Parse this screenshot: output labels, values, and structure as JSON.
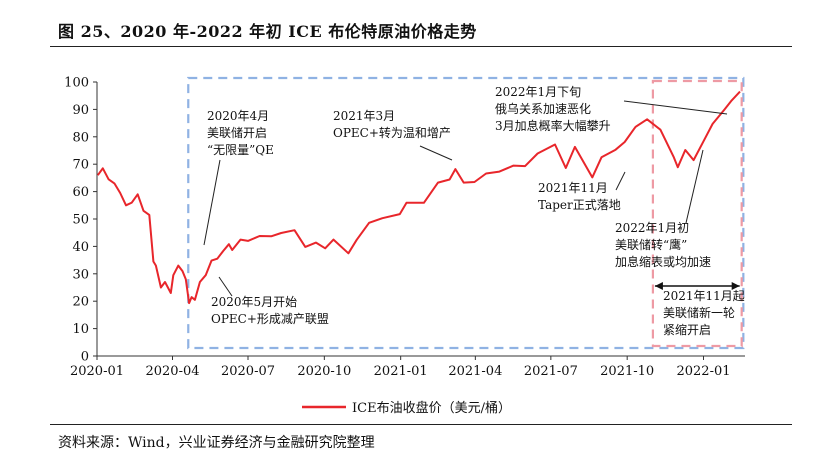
{
  "figure": {
    "title": "图 25、2020 年-2022 年初 ICE 布伦特原油价格走势",
    "source": "资料来源：Wind，兴业证券经济与金融研究院整理"
  },
  "colors": {
    "series": "#e8262b",
    "blue_box": "#8fb2e3",
    "pink_box": "#ee9aa4",
    "axis": "#333333"
  },
  "chart_data": {
    "type": "line",
    "xlabel": "",
    "ylabel": "",
    "ylim": [
      0,
      100
    ],
    "yticks": [
      0,
      10,
      20,
      30,
      40,
      50,
      60,
      70,
      80,
      90,
      100
    ],
    "xtick_labels": [
      "2020-01",
      "2020-04",
      "2020-07",
      "2020-10",
      "2021-01",
      "2021-04",
      "2021-07",
      "2021-10",
      "2022-01"
    ],
    "xlim": [
      "2020-01-01",
      "2022-02-20"
    ],
    "legend": "bottom",
    "grid": false,
    "series": [
      {
        "name": "ICE布油收盘价（美元/桶）",
        "points": [
          [
            "2020-01-02",
            66
          ],
          [
            "2020-01-08",
            68.5
          ],
          [
            "2020-01-15",
            64.5
          ],
          [
            "2020-01-22",
            63
          ],
          [
            "2020-01-29",
            59.5
          ],
          [
            "2020-02-05",
            55
          ],
          [
            "2020-02-12",
            56
          ],
          [
            "2020-02-19",
            59
          ],
          [
            "2020-02-26",
            53
          ],
          [
            "2020-03-04",
            51.5
          ],
          [
            "2020-03-09",
            34.5
          ],
          [
            "2020-03-12",
            33
          ],
          [
            "2020-03-18",
            25
          ],
          [
            "2020-03-23",
            27
          ],
          [
            "2020-03-30",
            23
          ],
          [
            "2020-04-02",
            29.5
          ],
          [
            "2020-04-08",
            33
          ],
          [
            "2020-04-13",
            31
          ],
          [
            "2020-04-17",
            28
          ],
          [
            "2020-04-21",
            19.3
          ],
          [
            "2020-04-24",
            21.5
          ],
          [
            "2020-04-28",
            20.5
          ],
          [
            "2020-05-04",
            27
          ],
          [
            "2020-05-11",
            29.5
          ],
          [
            "2020-05-18",
            34.8
          ],
          [
            "2020-05-25",
            35.5
          ],
          [
            "2020-06-01",
            38.3
          ],
          [
            "2020-06-08",
            40.8
          ],
          [
            "2020-06-12",
            38.7
          ],
          [
            "2020-06-22",
            42.5
          ],
          [
            "2020-07-01",
            42
          ],
          [
            "2020-07-15",
            43.8
          ],
          [
            "2020-07-29",
            43.7
          ],
          [
            "2020-08-10",
            44.9
          ],
          [
            "2020-08-26",
            45.9
          ],
          [
            "2020-09-08",
            39.8
          ],
          [
            "2020-09-21",
            41.4
          ],
          [
            "2020-10-02",
            39.3
          ],
          [
            "2020-10-12",
            42.5
          ],
          [
            "2020-10-30",
            37.5
          ],
          [
            "2020-11-09",
            42.4
          ],
          [
            "2020-11-24",
            48.6
          ],
          [
            "2020-12-10",
            50.3
          ],
          [
            "2020-12-31",
            51.8
          ],
          [
            "2021-01-08",
            55.9
          ],
          [
            "2021-01-29",
            55.9
          ],
          [
            "2021-02-15",
            63.3
          ],
          [
            "2021-03-01",
            64.4
          ],
          [
            "2021-03-08",
            68.2
          ],
          [
            "2021-03-18",
            63.3
          ],
          [
            "2021-03-31",
            63.5
          ],
          [
            "2021-04-14",
            66.6
          ],
          [
            "2021-04-30",
            67.3
          ],
          [
            "2021-05-17",
            69.5
          ],
          [
            "2021-05-31",
            69.3
          ],
          [
            "2021-06-15",
            73.9
          ],
          [
            "2021-07-06",
            77.2
          ],
          [
            "2021-07-19",
            68.6
          ],
          [
            "2021-07-30",
            76.3
          ],
          [
            "2021-08-20",
            65.2
          ],
          [
            "2021-08-31",
            72.5
          ],
          [
            "2021-09-17",
            75.3
          ],
          [
            "2021-09-28",
            78.1
          ],
          [
            "2021-10-11",
            83.6
          ],
          [
            "2021-10-25",
            86.4
          ],
          [
            "2021-11-10",
            82.6
          ],
          [
            "2021-11-26",
            72.7
          ],
          [
            "2021-12-01",
            68.9
          ],
          [
            "2021-12-10",
            75.2
          ],
          [
            "2021-12-20",
            71.5
          ],
          [
            "2021-12-31",
            77.8
          ],
          [
            "2022-01-12",
            84.7
          ],
          [
            "2022-01-26",
            89.9
          ],
          [
            "2022-02-04",
            93.3
          ],
          [
            "2022-02-14",
            96.5
          ]
        ]
      }
    ],
    "annotations": [
      {
        "lines": [
          "2020年4月",
          "美联储开启",
          "“无限量”QE"
        ]
      },
      {
        "lines": [
          "2021年3月",
          "OPEC+转为温和增产"
        ]
      },
      {
        "lines": [
          "2022年1月下旬",
          "俄乌关系加速恶化",
          "3月加息概率大幅攀升"
        ]
      },
      {
        "lines": [
          "2021年11月",
          "Taper正式落地"
        ]
      },
      {
        "lines": [
          "2022年1月初",
          "美联储转“鹰”",
          "加息缩表或均加速"
        ]
      },
      {
        "lines": [
          "2020年5月开始",
          "OPEC+形成减产联盟"
        ]
      },
      {
        "lines": [
          "2021年11月起",
          "美联储新一轮",
          "紧缩开启"
        ]
      }
    ]
  }
}
